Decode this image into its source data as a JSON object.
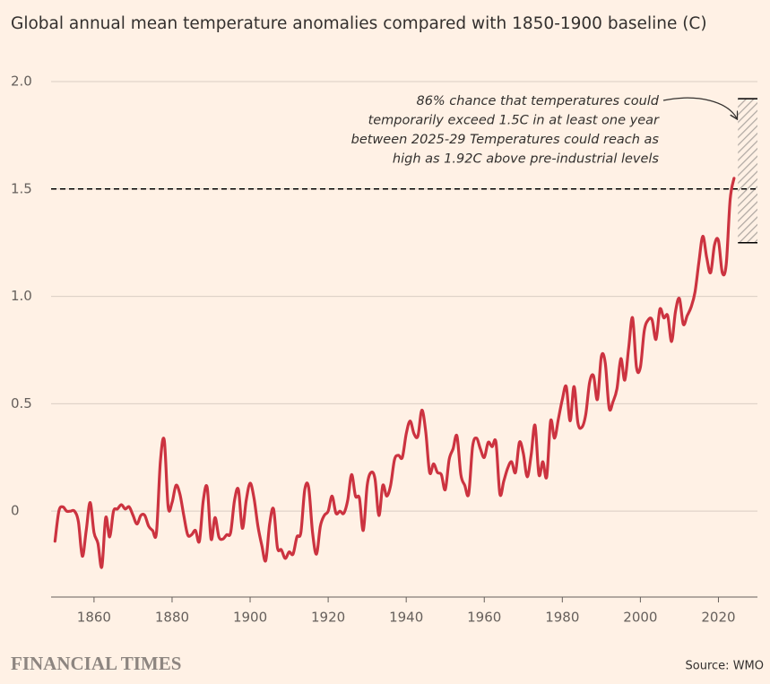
{
  "chart_data": {
    "type": "line",
    "title": "Global annual mean temperature anomalies compared with 1850-1900 baseline (C)",
    "x": [
      1850,
      1851,
      1852,
      1853,
      1854,
      1855,
      1856,
      1857,
      1858,
      1859,
      1860,
      1861,
      1862,
      1863,
      1864,
      1865,
      1866,
      1867,
      1868,
      1869,
      1870,
      1871,
      1872,
      1873,
      1874,
      1875,
      1876,
      1877,
      1878,
      1879,
      1880,
      1881,
      1882,
      1883,
      1884,
      1885,
      1886,
      1887,
      1888,
      1889,
      1890,
      1891,
      1892,
      1893,
      1894,
      1895,
      1896,
      1897,
      1898,
      1899,
      1900,
      1901,
      1902,
      1903,
      1904,
      1905,
      1906,
      1907,
      1908,
      1909,
      1910,
      1911,
      1912,
      1913,
      1914,
      1915,
      1916,
      1917,
      1918,
      1919,
      1920,
      1921,
      1922,
      1923,
      1924,
      1925,
      1926,
      1927,
      1928,
      1929,
      1930,
      1931,
      1932,
      1933,
      1934,
      1935,
      1936,
      1937,
      1938,
      1939,
      1940,
      1941,
      1942,
      1943,
      1944,
      1945,
      1946,
      1947,
      1948,
      1949,
      1950,
      1951,
      1952,
      1953,
      1954,
      1955,
      1956,
      1957,
      1958,
      1959,
      1960,
      1961,
      1962,
      1963,
      1964,
      1965,
      1966,
      1967,
      1968,
      1969,
      1970,
      1971,
      1972,
      1973,
      1974,
      1975,
      1976,
      1977,
      1978,
      1979,
      1980,
      1981,
      1982,
      1983,
      1984,
      1985,
      1986,
      1987,
      1988,
      1989,
      1990,
      1991,
      1992,
      1993,
      1994,
      1995,
      1996,
      1997,
      1998,
      1999,
      2000,
      2001,
      2002,
      2003,
      2004,
      2005,
      2006,
      2007,
      2008,
      2009,
      2010,
      2011,
      2012,
      2013,
      2014,
      2015,
      2016,
      2017,
      2018,
      2019,
      2020,
      2021,
      2022,
      2023,
      2024
    ],
    "series": [
      {
        "color": "#cc3340",
        "values": [
          -0.14,
          0.0,
          0.02,
          0.0,
          0.0,
          0.0,
          -0.05,
          -0.21,
          -0.09,
          0.04,
          -0.1,
          -0.15,
          -0.26,
          -0.03,
          -0.12,
          0.0,
          0.01,
          0.03,
          0.01,
          0.02,
          -0.02,
          -0.06,
          -0.02,
          -0.02,
          -0.07,
          -0.09,
          -0.1,
          0.23,
          0.33,
          0.02,
          0.04,
          0.12,
          0.08,
          -0.02,
          -0.11,
          -0.11,
          -0.09,
          -0.14,
          0.05,
          0.11,
          -0.13,
          -0.03,
          -0.12,
          -0.13,
          -0.11,
          -0.1,
          0.05,
          0.1,
          -0.08,
          0.05,
          0.13,
          0.06,
          -0.07,
          -0.16,
          -0.23,
          -0.06,
          0.01,
          -0.17,
          -0.18,
          -0.22,
          -0.19,
          -0.2,
          -0.12,
          -0.1,
          0.1,
          0.11,
          -0.1,
          -0.2,
          -0.07,
          -0.02,
          0.0,
          0.07,
          -0.01,
          0.0,
          -0.01,
          0.05,
          0.17,
          0.07,
          0.06,
          -0.09,
          0.12,
          0.18,
          0.15,
          -0.02,
          0.12,
          0.07,
          0.12,
          0.24,
          0.26,
          0.25,
          0.36,
          0.42,
          0.36,
          0.35,
          0.47,
          0.37,
          0.18,
          0.22,
          0.18,
          0.17,
          0.1,
          0.24,
          0.29,
          0.35,
          0.17,
          0.12,
          0.08,
          0.3,
          0.34,
          0.29,
          0.25,
          0.32,
          0.3,
          0.32,
          0.08,
          0.14,
          0.2,
          0.23,
          0.18,
          0.32,
          0.27,
          0.16,
          0.26,
          0.4,
          0.17,
          0.23,
          0.16,
          0.42,
          0.34,
          0.43,
          0.52,
          0.58,
          0.42,
          0.58,
          0.41,
          0.39,
          0.45,
          0.6,
          0.63,
          0.52,
          0.72,
          0.69,
          0.48,
          0.51,
          0.57,
          0.71,
          0.61,
          0.76,
          0.9,
          0.67,
          0.67,
          0.84,
          0.89,
          0.89,
          0.8,
          0.94,
          0.9,
          0.91,
          0.79,
          0.93,
          0.99,
          0.87,
          0.91,
          0.95,
          1.02,
          1.16,
          1.28,
          1.18,
          1.11,
          1.24,
          1.26,
          1.11,
          1.15,
          1.45,
          1.55
        ]
      }
    ],
    "xlim": [
      1849,
      2030
    ],
    "xticks": [
      1860,
      1880,
      1900,
      1920,
      1940,
      1960,
      1980,
      2000,
      2020
    ],
    "ylim": [
      -0.4,
      2.0
    ],
    "yticks": [
      0,
      0.5,
      {
        "value": 1,
        "label": "1.0"
      },
      1.5,
      {
        "value": 2,
        "label": "2.0"
      }
    ],
    "grid": true,
    "reference_line": 1.5,
    "projection": {
      "x": [
        2025,
        2030
      ],
      "range": [
        1.25,
        1.92
      ]
    },
    "annotation": [
      "86% chance that temperatures could",
      "temporarily exceed 1.5C in at least one year",
      "between 2025-29 Temperatures could reach as",
      "high as 1.92C above pre-industrial levels"
    ],
    "source": "Source: WMO",
    "publisher": "FINANCIAL TIMES"
  }
}
